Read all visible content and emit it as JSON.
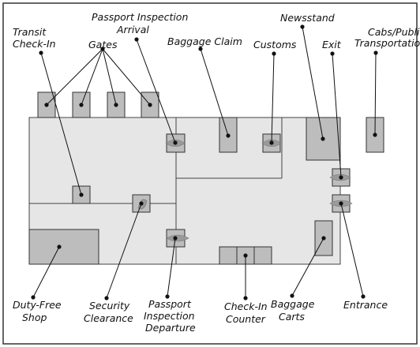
{
  "labels": {
    "transit_checkin": [
      "Transit",
      "Check-In"
    ],
    "gates": "Gates",
    "passport_arrival": [
      "Passport Inspection",
      "Arrival"
    ],
    "baggage_claim": "Baggage Claim",
    "customs": "Customs",
    "newsstand": "Newsstand",
    "exit": "Exit",
    "cabs": [
      "Cabs/Public",
      "Transportation"
    ],
    "duty_free": [
      "Duty-Free",
      "Shop"
    ],
    "security": [
      "Security",
      "Clearance"
    ],
    "passport_departure": [
      "Passport",
      "Inspection",
      "Departure"
    ],
    "checkin_counter": [
      "Check-In",
      "Counter"
    ],
    "baggage_carts": [
      "Baggage",
      "Carts"
    ],
    "entrance": "Entrance"
  },
  "colors": {
    "floor": "#e6e6e6",
    "fixture": "#bdbdbd",
    "line": "#111111"
  }
}
